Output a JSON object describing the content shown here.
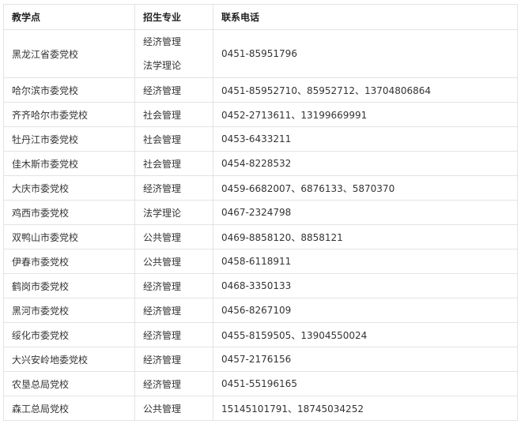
{
  "headers": [
    "教学点",
    "招生专业",
    "联系电话"
  ],
  "rows": [
    {
      "school": "黑龙江省委党校",
      "majors": [
        "经济管理",
        "法学理论"
      ],
      "phone": "0451-85951796"
    },
    {
      "school": "哈尔滨市委党校",
      "majors": [
        "经济管理"
      ],
      "phone": "0451-85952710、85952712、13704806864"
    },
    {
      "school": "齐齐哈尔市委党校",
      "majors": [
        "社会管理"
      ],
      "phone": "0452-2713611、13199669991"
    },
    {
      "school": "牡丹江市委党校",
      "majors": [
        "社会管理"
      ],
      "phone": "0453-6433211"
    },
    {
      "school": "佳木斯市委党校",
      "majors": [
        "社会管理"
      ],
      "phone": "0454-8228532"
    },
    {
      "school": "大庆市委党校",
      "majors": [
        "经济管理"
      ],
      "phone": "0459-6682007、6876133、5870370"
    },
    {
      "school": "鸡西市委党校",
      "majors": [
        "法学理论"
      ],
      "phone": "0467-2324798"
    },
    {
      "school": "双鸭山市委党校",
      "majors": [
        "公共管理"
      ],
      "phone": "0469-8858120、8858121"
    },
    {
      "school": "伊春市委党校",
      "majors": [
        "公共管理"
      ],
      "phone": "0458-6118911"
    },
    {
      "school": "鹤岗市委党校",
      "majors": [
        "经济管理"
      ],
      "phone": "0468-3350133"
    },
    {
      "school": "黑河市委党校",
      "majors": [
        "经济管理"
      ],
      "phone": "0456-8267109"
    },
    {
      "school": "绥化市委党校",
      "majors": [
        "经济管理"
      ],
      "phone": "0455-8159505、13904550024"
    },
    {
      "school": "大兴安岭地委党校",
      "majors": [
        "经济管理"
      ],
      "phone": "0457-2176156"
    },
    {
      "school": "农垦总局党校",
      "majors": [
        "经济管理"
      ],
      "phone": "0451-55196165"
    },
    {
      "school": "森工总局党校",
      "majors": [
        "公共管理"
      ],
      "phone": "15145101791、18745034252"
    }
  ]
}
